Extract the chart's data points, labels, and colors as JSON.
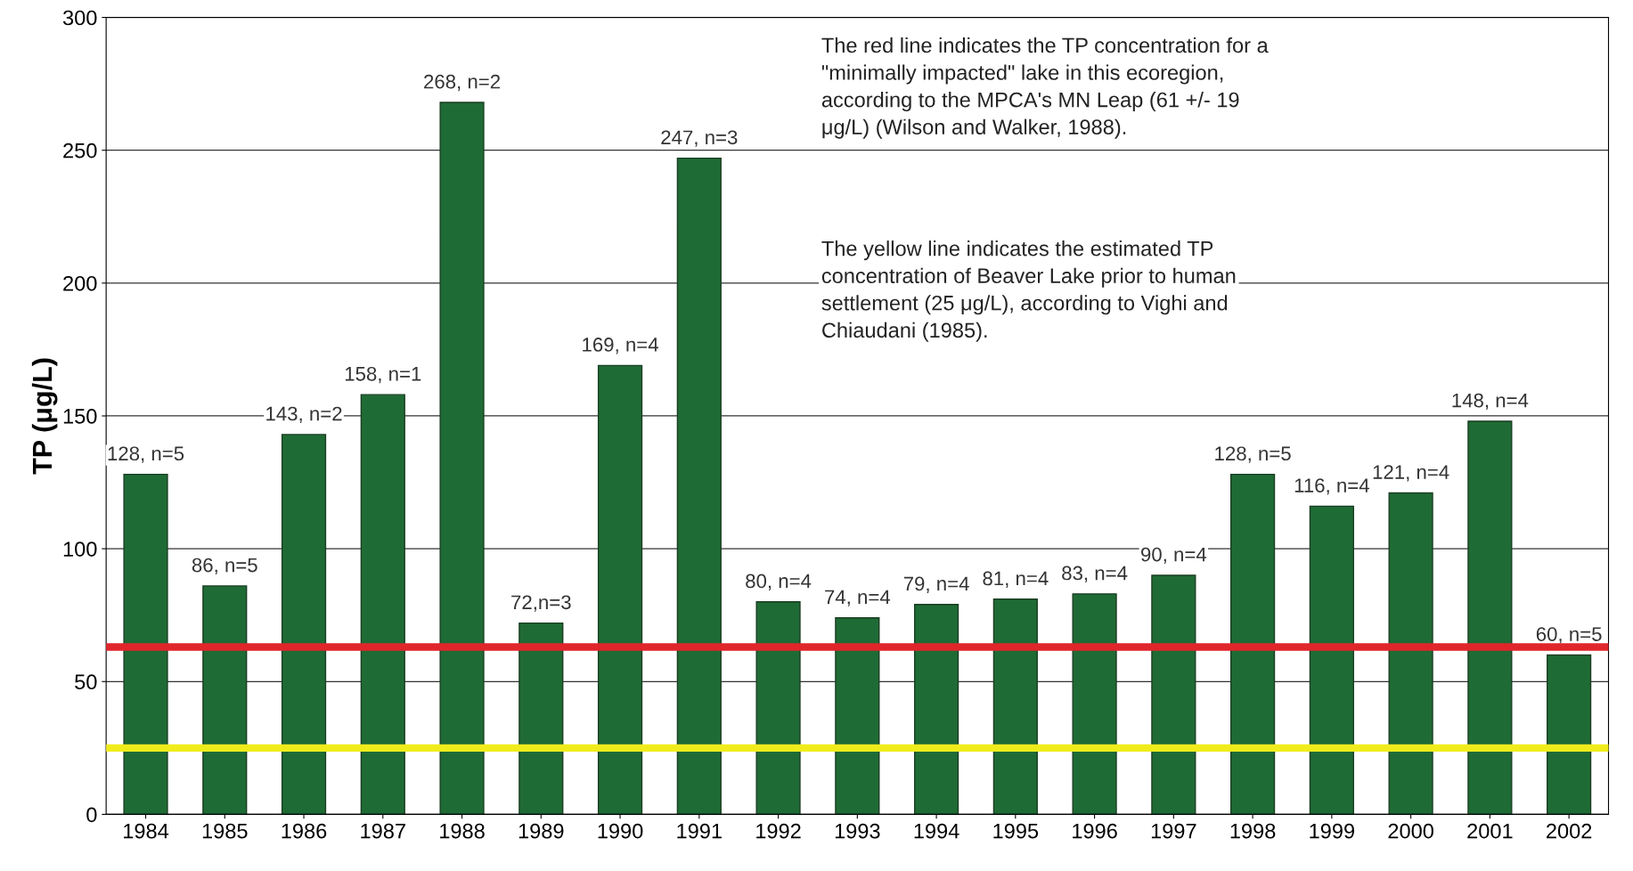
{
  "chart_data": {
    "type": "bar",
    "ylabel": "TP (μg/L)",
    "categories": [
      "1984",
      "1985",
      "1986",
      "1987",
      "1988",
      "1989",
      "1990",
      "1991",
      "1992",
      "1993",
      "1994",
      "1995",
      "1996",
      "1997",
      "1998",
      "1999",
      "2000",
      "2001",
      "2002"
    ],
    "values": [
      128,
      86,
      143,
      158,
      268,
      72,
      169,
      247,
      80,
      74,
      79,
      81,
      83,
      90,
      128,
      116,
      121,
      148,
      60
    ],
    "value_labels": [
      "128, n=5",
      "86, n=5",
      "143, n=2",
      "158, n=1",
      "268, n=2",
      "72,n=3",
      "169, n=4",
      "247, n=3",
      "80, n=4",
      "74, n=4",
      "79, n=4",
      "81, n=4",
      "83, n=4",
      "90, n=4",
      "128, n=5",
      "116, n=4",
      "121, n=4",
      "148, n=4",
      "60, n=5"
    ],
    "color": "#1f6b35",
    "ylim": [
      0,
      300
    ],
    "yticks": [
      0,
      50,
      100,
      150,
      200,
      250,
      300
    ],
    "grid": "y",
    "ref_lines": [
      {
        "axis": "y",
        "value": 63,
        "color": "#e0262b"
      },
      {
        "axis": "y",
        "value": 25,
        "color": "#f0ec1c"
      }
    ],
    "annotations": [
      "The red line indicates the TP concentration for a\n\"minimally impacted\" lake in this ecoregion,\naccording to the MPCA's MN Leap (61 +/- 19\nμg/L) (Wilson and Walker, 1988).",
      "The yellow line indicates the estimated TP\nconcentration of Beaver Lake prior to human\nsettlement (25 μg/L), according to Vighi and\nChiaudani (1985)."
    ]
  }
}
